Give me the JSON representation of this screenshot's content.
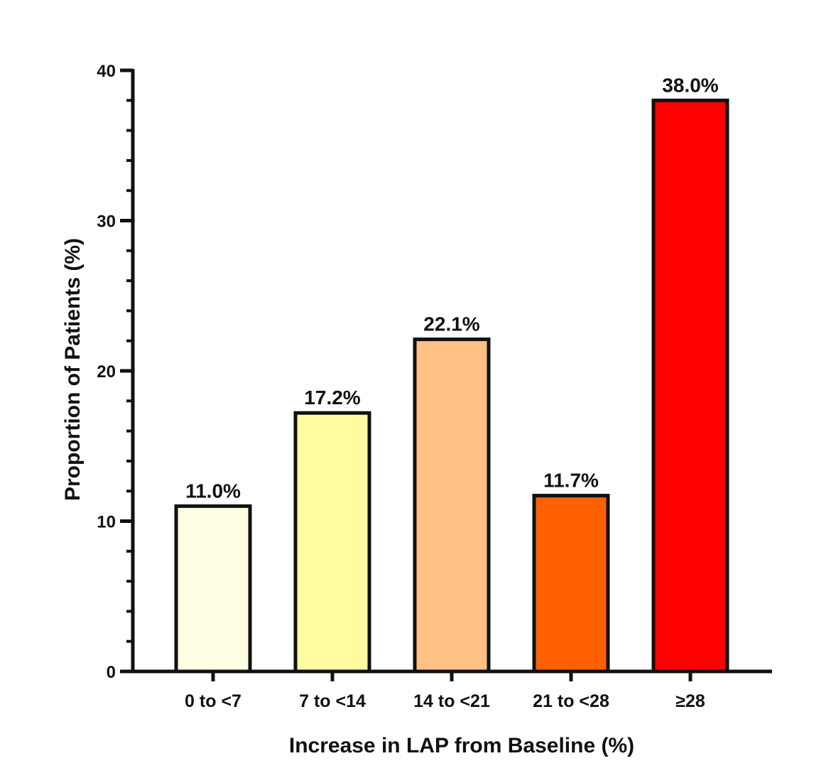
{
  "chart_data": {
    "type": "bar",
    "title": "",
    "xlabel": "Increase in LAP from Baseline (%)",
    "ylabel": "Proportion of Patients (%)",
    "categories": [
      "0 to <7",
      "7 to <14",
      "14 to <21",
      "21 to <28",
      "≥28"
    ],
    "values": [
      11.0,
      17.2,
      22.1,
      11.7,
      38.0
    ],
    "data_labels": [
      "11.0%",
      "17.2%",
      "22.1%",
      "11.7%",
      "38.0%"
    ],
    "colors": [
      "#FFFDE3",
      "#FFFB9E",
      "#FFC084",
      "#FF6100",
      "#FF0000"
    ],
    "ylim": [
      0,
      40
    ],
    "yticks": [
      0,
      10,
      20,
      30,
      40
    ],
    "ytick_labels": [
      "0",
      "10",
      "20",
      "30",
      "40"
    ],
    "minor_tick_step": 2,
    "grid": false,
    "legend": "none"
  }
}
